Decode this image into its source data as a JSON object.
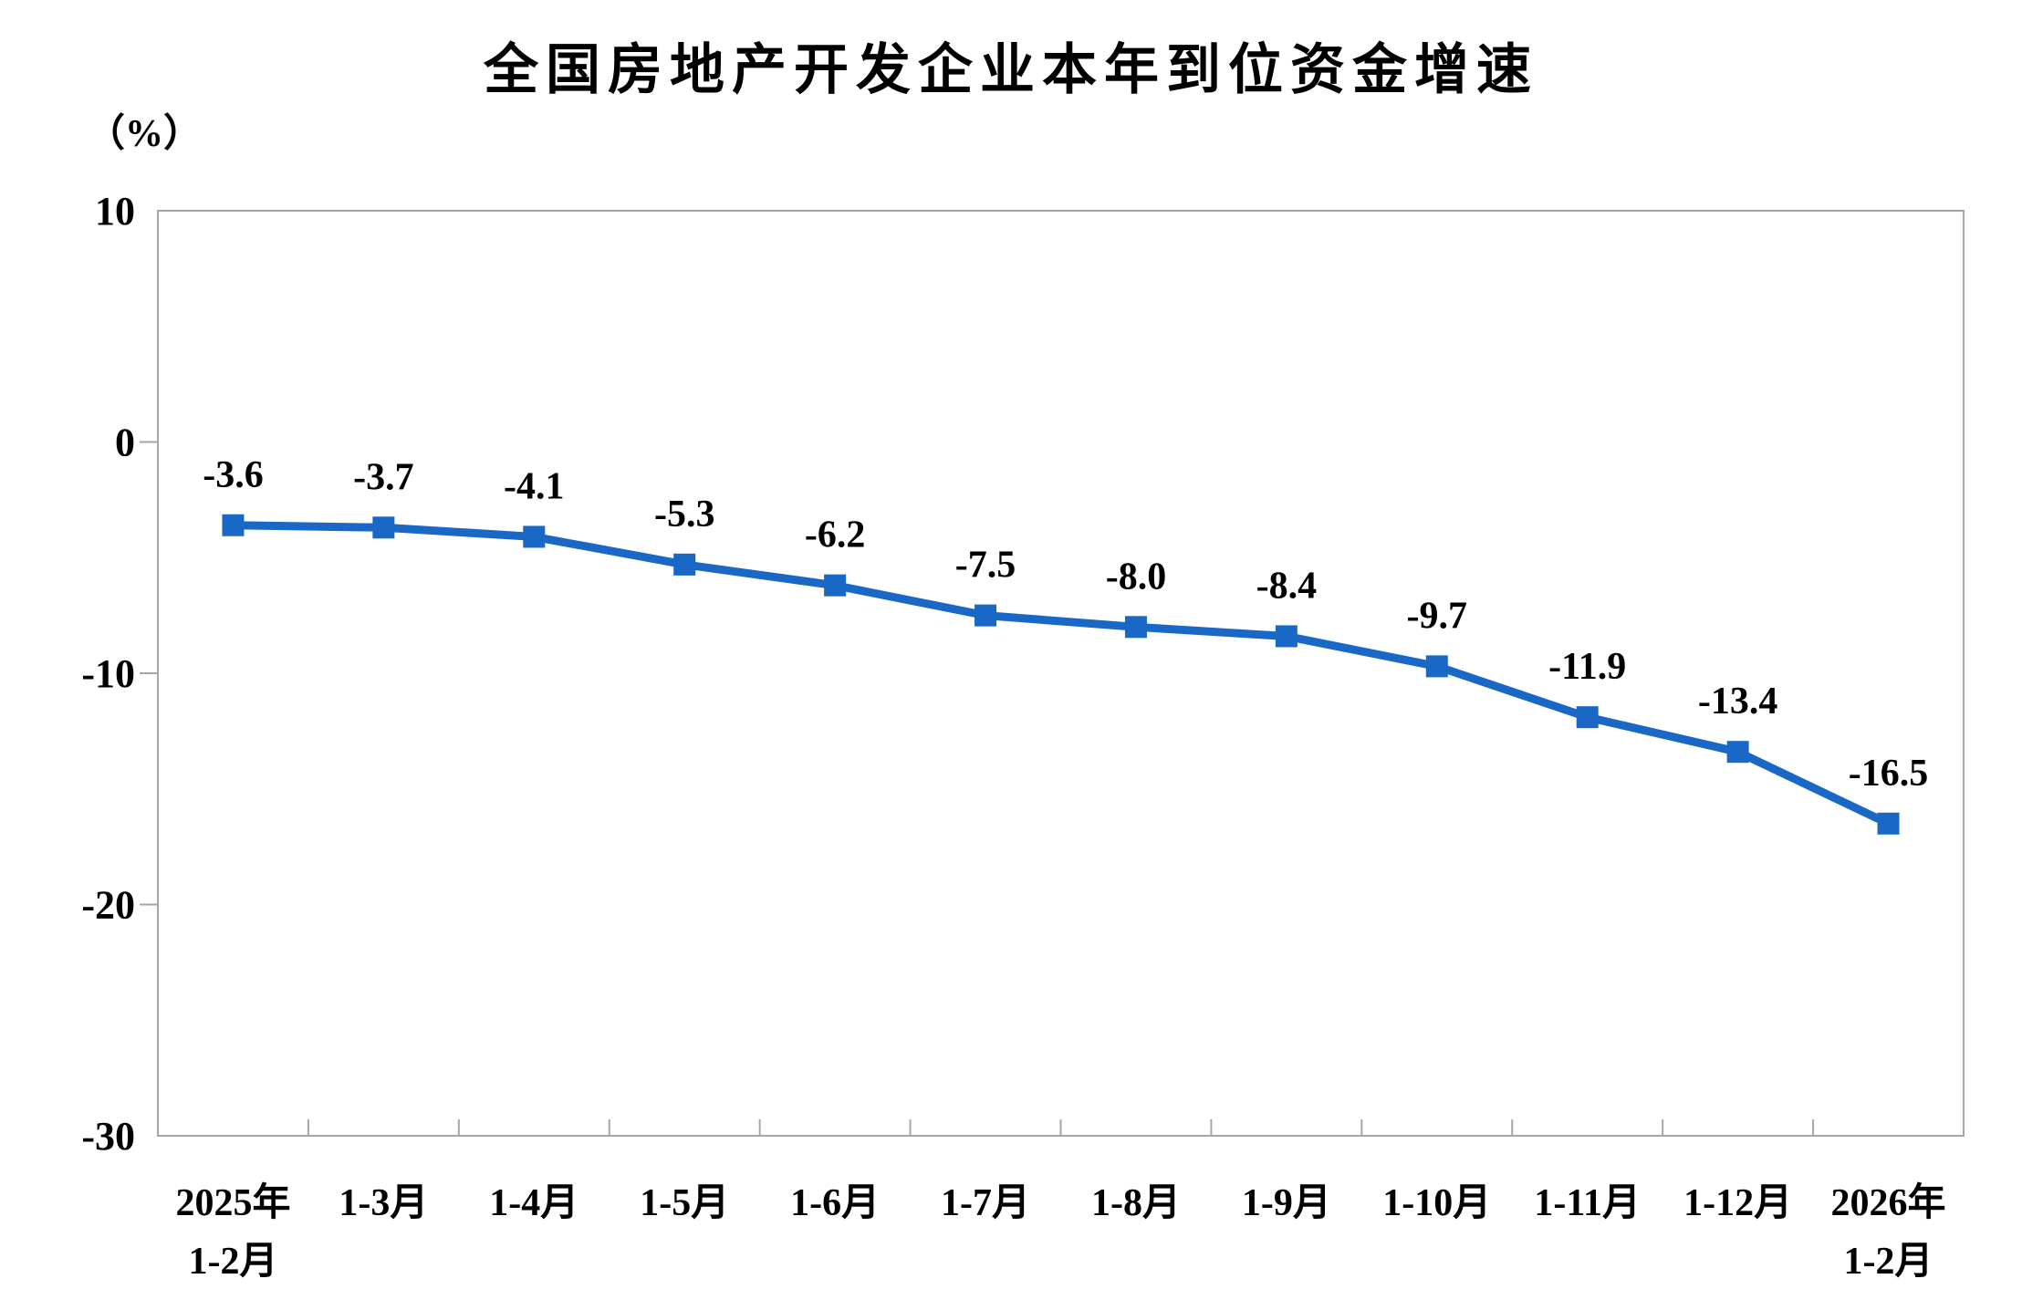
{
  "page": {
    "background": "#ffffff"
  },
  "chart_data": {
    "type": "line",
    "title": "全国房地产开发企业本年到位资金增速",
    "unit_label": "（%）",
    "categories": [
      [
        "2025年",
        "1-2月"
      ],
      [
        "1-3月"
      ],
      [
        "1-4月"
      ],
      [
        "1-5月"
      ],
      [
        "1-6月"
      ],
      [
        "1-7月"
      ],
      [
        "1-8月"
      ],
      [
        "1-9月"
      ],
      [
        "1-10月"
      ],
      [
        "1-11月"
      ],
      [
        "1-12月"
      ],
      [
        "2026年",
        "1-2月"
      ]
    ],
    "values": [
      -3.6,
      -3.7,
      -4.1,
      -5.3,
      -6.2,
      -7.5,
      -8.0,
      -8.4,
      -9.7,
      -11.9,
      -13.4,
      -16.5
    ],
    "point_labels": [
      "-3.6",
      "-3.7",
      "-4.1",
      "-5.3",
      "-6.2",
      "-7.5",
      "-8.0",
      "-8.4",
      "-9.7",
      "-11.9",
      "-13.4",
      "-16.5"
    ],
    "ylim": [
      -30,
      10
    ],
    "yticks": [
      10,
      0,
      -10,
      -20,
      -30
    ],
    "xlabel": "",
    "ylabel": "（%）",
    "grid": "off",
    "legend": "none",
    "marker": "square",
    "line_color": "#1A68C6",
    "axis_color": "#A6A6A6",
    "text_color": "#000000"
  }
}
